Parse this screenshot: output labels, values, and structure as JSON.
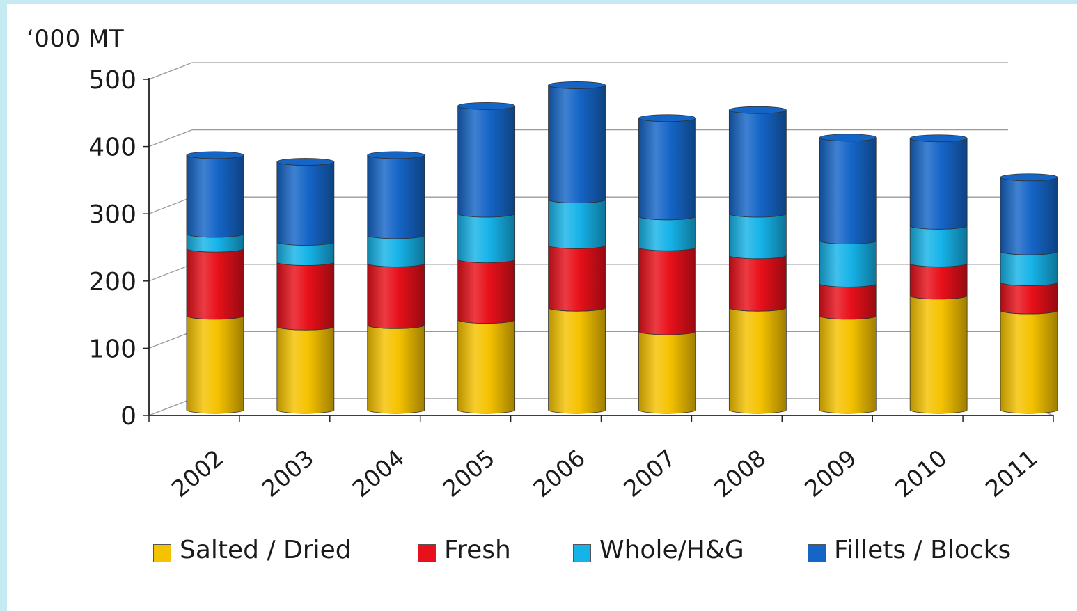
{
  "chart_data": {
    "type": "bar",
    "stacked": true,
    "style": "3d-cylinder",
    "ylabel": "‘000 MT",
    "xlabel": "",
    "ylim": [
      0,
      500
    ],
    "yticks": [
      "0",
      "100",
      "200",
      "300",
      "400",
      "500"
    ],
    "grid": true,
    "legend_position": "bottom",
    "categories": [
      "2002",
      "2003",
      "2004",
      "2005",
      "2006",
      "2007",
      "2008",
      "2009",
      "2010",
      "2011"
    ],
    "series": [
      {
        "name": "Salted / Dried",
        "color": "#f5c200",
        "values": [
          140,
          124,
          126,
          134,
          152,
          117,
          152,
          140,
          170,
          148
        ]
      },
      {
        "name": "Fresh",
        "color": "#e8101a",
        "values": [
          100,
          96,
          92,
          90,
          93,
          125,
          78,
          48,
          48,
          42
        ]
      },
      {
        "name": "Whole/H&G",
        "color": "#16b3e8",
        "values": [
          22,
          30,
          42,
          68,
          68,
          46,
          62,
          64,
          56,
          46
        ]
      },
      {
        "name": "Fillets / Blocks",
        "color": "#1565c7",
        "values": [
          117,
          119,
          119,
          160,
          170,
          146,
          154,
          153,
          130,
          110
        ]
      }
    ]
  }
}
